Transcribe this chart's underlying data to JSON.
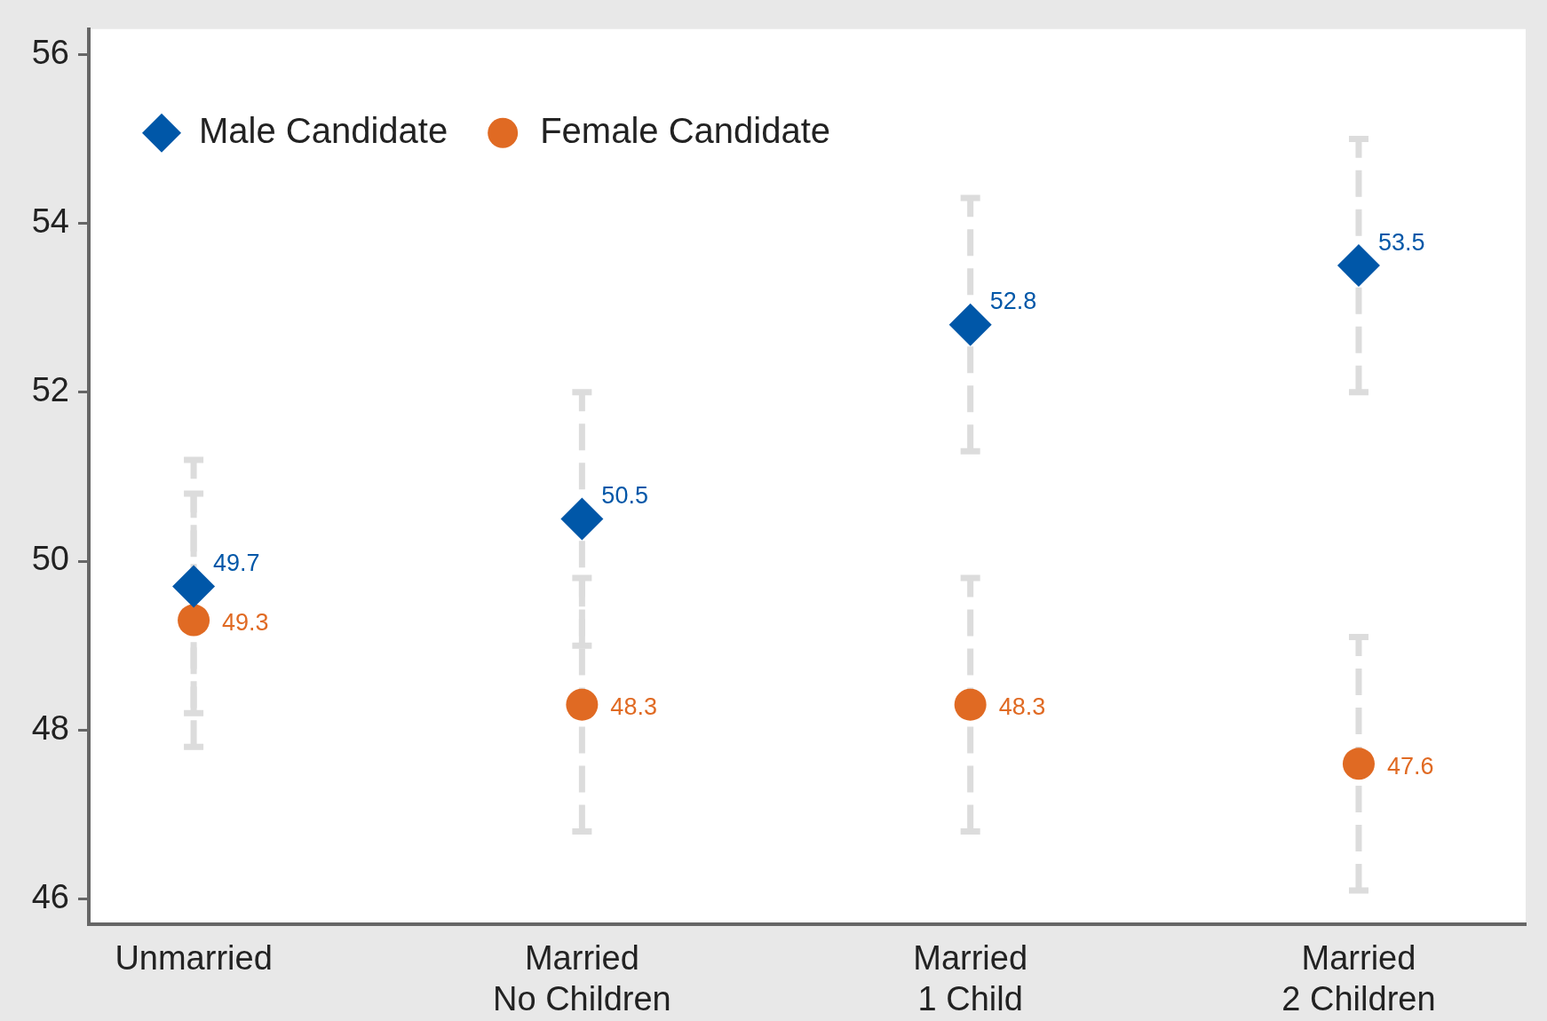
{
  "chart_data": {
    "type": "scatter",
    "categories": [
      "Unmarried",
      "Married\nNo Children",
      "Married\n1 Child",
      "Married\n2 Children"
    ],
    "series": [
      {
        "name": "Male Candidate",
        "color": "#0057a8",
        "marker": "diamond",
        "values": [
          49.7,
          50.5,
          52.8,
          53.5
        ],
        "errors": [
          1.5,
          1.5,
          1.5,
          1.5
        ]
      },
      {
        "name": "Female Candidate",
        "color": "#e06a23",
        "marker": "circle",
        "values": [
          49.3,
          48.3,
          48.3,
          47.6
        ],
        "errors": [
          1.5,
          1.5,
          1.5,
          1.5
        ]
      }
    ],
    "ylim": [
      45.7,
      56.3
    ],
    "yticks": [
      46,
      48,
      50,
      52,
      54,
      56
    ],
    "legend": "top left",
    "data_labels": true
  }
}
